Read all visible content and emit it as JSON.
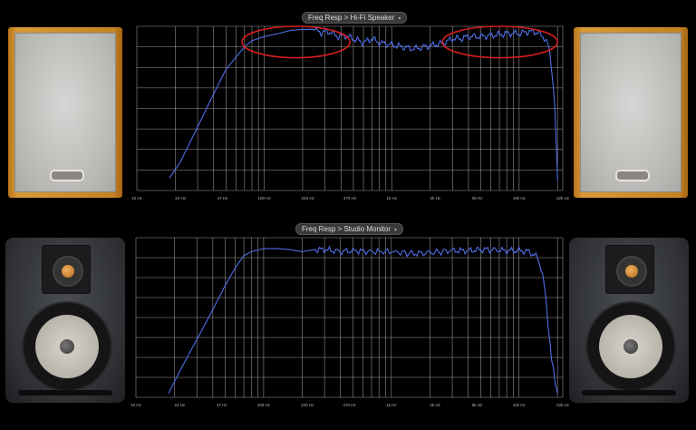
{
  "panels": [
    {
      "title": "Freq Resp > Hi-Fi Speaker",
      "dropdown_icon": "chevron-down-icon"
    },
    {
      "title": "Freq Resp > Studio Monitor",
      "dropdown_icon": "chevron-down-icon"
    }
  ],
  "colors": {
    "curve": "#4f6fe8",
    "grid": "#cfcfcf",
    "highlight": "#d21e1e",
    "background": "#000000",
    "tick_text": "#bbbbbb"
  },
  "chart_data": [
    {
      "type": "line",
      "title": "Freq Resp > Hi-Fi Speaker",
      "xlabel": "",
      "ylabel": "",
      "x_scale": "log",
      "xlim": [
        10,
        22000
      ],
      "x_ticks": [
        10,
        22,
        47,
        100,
        220,
        470,
        1000,
        2200,
        4700,
        10000,
        22000
      ],
      "x_tick_labels": [
        "10 Hz",
        "22 Hz",
        "47 Hz",
        "100 Hz",
        "220 Hz",
        "470 Hz",
        "1k Hz",
        "2k Hz",
        "5k Hz",
        "10k Hz",
        "22k Hz"
      ],
      "ylim": [
        -80,
        0
      ],
      "y_grid_count": 8,
      "grid": true,
      "series": [
        {
          "x": [
            18,
            22,
            30,
            40,
            50,
            60,
            70,
            80,
            100,
            130,
            160,
            200,
            240,
            280,
            320,
            380,
            430,
            500,
            600,
            700,
            800,
            1000,
            1200,
            1500,
            1800,
            2200,
            2600,
            3000,
            3500,
            4000,
            5000,
            6000,
            7000,
            8000,
            10000,
            12000,
            14000,
            16000,
            17000,
            18000,
            19000,
            20000
          ],
          "y": [
            -74,
            -66,
            -49,
            -33,
            -21,
            -15,
            -10,
            -7,
            -5,
            -3.5,
            -2,
            -1.5,
            -1.5,
            -3,
            -2.5,
            -5,
            -4.5,
            -6,
            -8,
            -6,
            -8,
            -9,
            -10,
            -11,
            -10,
            -9,
            -8,
            -6,
            -6,
            -5,
            -5,
            -4.5,
            -4,
            -3.5,
            -3.5,
            -2.5,
            -3,
            -6,
            -10,
            -20,
            -38,
            -75
          ]
        }
      ],
      "annotations": [
        {
          "type": "ellipse",
          "x_range": [
            67,
            470
          ],
          "y_range": [
            -10,
            0
          ]
        },
        {
          "type": "ellipse",
          "x_range": [
            2500,
            20000
          ],
          "y_range": [
            -10,
            0
          ]
        }
      ]
    },
    {
      "type": "line",
      "title": "Freq Resp > Studio Monitor",
      "xlabel": "",
      "ylabel": "",
      "x_scale": "log",
      "xlim": [
        10,
        22000
      ],
      "x_ticks": [
        10,
        22,
        47,
        100,
        220,
        470,
        1000,
        2200,
        4700,
        10000,
        22000
      ],
      "x_tick_labels": [
        "10 Hz",
        "22 Hz",
        "47 Hz",
        "100 Hz",
        "220 Hz",
        "470 Hz",
        "1k Hz",
        "2k Hz",
        "5k Hz",
        "10k Hz",
        "22k Hz"
      ],
      "ylim": [
        -80,
        0
      ],
      "y_grid_count": 8,
      "grid": true,
      "series": [
        {
          "x": [
            18,
            22,
            30,
            40,
            50,
            60,
            70,
            80,
            100,
            130,
            160,
            200,
            250,
            300,
            400,
            500,
            700,
            1000,
            1500,
            2000,
            3000,
            4000,
            5000,
            6000,
            8000,
            10000,
            12000,
            14000,
            15000,
            16000,
            17000,
            18000,
            20000
          ],
          "y": [
            -78,
            -67,
            -51,
            -36,
            -24,
            -15,
            -9,
            -7,
            -5.5,
            -5.5,
            -6,
            -7,
            -6,
            -6,
            -7,
            -6.5,
            -7,
            -7,
            -8,
            -7.5,
            -6.5,
            -6.5,
            -6,
            -6,
            -6.5,
            -6.5,
            -7,
            -10,
            -16,
            -27,
            -45,
            -62,
            -78
          ]
        }
      ],
      "annotations": []
    }
  ]
}
